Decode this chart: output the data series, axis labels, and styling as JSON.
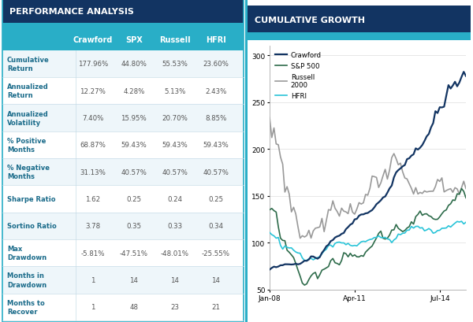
{
  "table_title": "PERFORMANCE ANALYSIS",
  "chart_title": "CUMULATIVE GROWTH",
  "header_bg": "#123462",
  "subheader_bg": "#29aec7",
  "title_text_color": "#ffffff",
  "row_label_color": "#1a6b8a",
  "value_color": "#555555",
  "columns": [
    "Crawford",
    "SPX",
    "Russell",
    "HFRI"
  ],
  "rows": [
    {
      "label": "Cumulative\nReturn",
      "values": [
        "177.96%",
        "44.80%",
        "55.53%",
        "23.60%"
      ]
    },
    {
      "label": "Annualized\nReturn",
      "values": [
        "12.27%",
        "4.28%",
        "5.13%",
        "2.43%"
      ]
    },
    {
      "label": "Annualized\nVolatility",
      "values": [
        "7.40%",
        "15.95%",
        "20.70%",
        "8.85%"
      ]
    },
    {
      "label": "% Positive\nMonths",
      "values": [
        "68.87%",
        "59.43%",
        "59.43%",
        "59.43%"
      ]
    },
    {
      "label": "% Negative\nMonths",
      "values": [
        "31.13%",
        "40.57%",
        "40.57%",
        "40.57%"
      ]
    },
    {
      "label": "Sharpe Ratio",
      "values": [
        "1.62",
        "0.25",
        "0.24",
        "0.25"
      ]
    },
    {
      "label": "Sortino Ratio",
      "values": [
        "3.78",
        "0.35",
        "0.33",
        "0.34"
      ]
    },
    {
      "label": "Max\nDrawdown",
      "values": [
        "-5.81%",
        "-47.51%",
        "-48.01%",
        "-25.55%"
      ]
    },
    {
      "label": "Months in\nDrawdown",
      "values": [
        "1",
        "14",
        "14",
        "14"
      ]
    },
    {
      "label": "Months to\nRecover",
      "values": [
        "1",
        "48",
        "23",
        "21"
      ]
    }
  ],
  "line_colors": {
    "Crawford": "#123462",
    "SP500": "#2d6b4a",
    "Russell": "#999999",
    "HFRI": "#29c4d8"
  },
  "yticks": [
    50,
    100,
    150,
    200,
    250,
    300
  ],
  "xtick_labels": [
    "Jan-08",
    "Apr-11",
    "Jul-14"
  ],
  "border_color": "#29aec7",
  "row_bg_even": "#eef6fa",
  "row_bg_odd": "#ffffff",
  "divider_color": "#c8dde8"
}
